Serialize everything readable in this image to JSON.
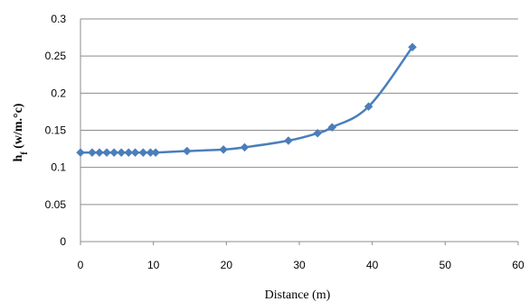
{
  "chart_data": {
    "type": "line",
    "title": "",
    "xlabel": "Distance (m)",
    "ylabel": {
      "main": "h",
      "sub": "f",
      "rest": " (w/m.°c)"
    },
    "xlim": [
      0,
      60
    ],
    "ylim": [
      0,
      0.3
    ],
    "xticks": [
      "0",
      "10",
      "20",
      "30",
      "40",
      "50",
      "60"
    ],
    "yticks": [
      "0",
      "0.05",
      "0.1",
      "0.15",
      "0.2",
      "0.25",
      "0.3"
    ],
    "grid": "horizontal",
    "legend": "none",
    "series_color": "#4a7ebb",
    "series": [
      {
        "x": [
          0,
          1.6,
          2.6,
          3.6,
          4.6,
          5.6,
          6.6,
          7.5,
          8.6,
          9.6,
          10.3,
          14.6,
          19.6,
          22.5,
          28.5,
          32.5,
          34.5,
          39.5,
          45.5
        ],
        "y": [
          0.12,
          0.12,
          0.12,
          0.12,
          0.12,
          0.12,
          0.12,
          0.12,
          0.12,
          0.12,
          0.12,
          0.122,
          0.124,
          0.127,
          0.136,
          0.146,
          0.154,
          0.182,
          0.262
        ]
      }
    ]
  }
}
